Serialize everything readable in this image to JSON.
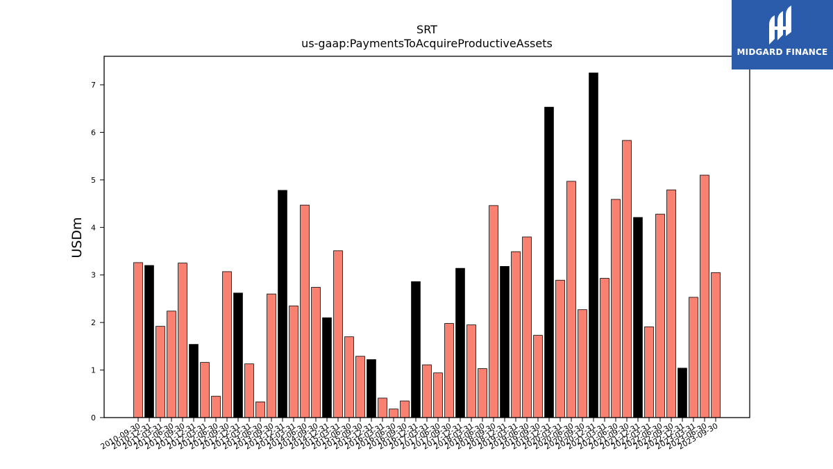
{
  "chart_data": {
    "type": "bar",
    "title": "SRT",
    "subtitle": "us-gaap:PaymentsToAcquireProductiveAssets",
    "ylabel": "USDm",
    "xlabel": "",
    "ylim": [
      0,
      7.6
    ],
    "yticks": [
      "0",
      "1",
      "2",
      "3",
      "4",
      "5",
      "6",
      "7"
    ],
    "colors": {
      "default": "#fa8072",
      "highlight": "#000000",
      "edge": "#000000"
    },
    "categories": [
      "2010-09-30",
      "2010-12-31",
      "2011-03-31",
      "2011-06-30",
      "2011-09-30",
      "2011-12-31",
      "2012-03-31",
      "2012-06-30",
      "2012-09-30",
      "2012-12-31",
      "2013-03-31",
      "2013-06-30",
      "2013-09-30",
      "2013-12-31",
      "2014-03-31",
      "2014-06-30",
      "2014-09-30",
      "2014-12-31",
      "2015-03-31",
      "2015-06-30",
      "2015-09-30",
      "2015-12-31",
      "2016-03-31",
      "2016-06-30",
      "2016-09-30",
      "2016-12-31",
      "2017-03-31",
      "2017-06-30",
      "2017-09-30",
      "2017-12-31",
      "2018-03-31",
      "2018-06-30",
      "2018-09-30",
      "2018-12-31",
      "2019-03-31",
      "2019-06-30",
      "2019-09-30",
      "2019-12-31",
      "2020-03-31",
      "2020-06-30",
      "2020-09-30",
      "2020-12-31",
      "2021-03-31",
      "2021-06-30",
      "2021-09-30",
      "2021-12-31",
      "2022-03-31",
      "2022-06-30",
      "2022-09-30",
      "2022-12-31",
      "2023-03-31",
      "2023-06-30",
      "2023-09-30"
    ],
    "xtick_labels": [
      "2010-09-30",
      "2010-12-31",
      "2011-03-31",
      "2011-06-30",
      "2011-09-30",
      "2011-12-31",
      "2012-03-31",
      "2012-06-30",
      "2012-09-30",
      "2012-12-31",
      "2013-03-31",
      "2013-06-30",
      "2013-09-30",
      "2013-12-31",
      "2014-03-31",
      "2014-06-30",
      "2014-09-30",
      "2014-12-31",
      "2015-03-31",
      "2015-06-30",
      "2015-09-30",
      "2015-12-31",
      "2016-03-31",
      "2016-06-30",
      "2016-09-30",
      "2016-12-31",
      "2017-03-31",
      "2017-06-30",
      "2017-09-30",
      "2017-12-31",
      "2018-03-31",
      "2018-06-30",
      "2018-09-30",
      "2018-12-31",
      "2019-03-31",
      "2019-06-30",
      "2019-09-30",
      "2019-12-31",
      "2020-03-31",
      "2020-06-30",
      "2020-09-30",
      "2020-12-31",
      "2021-03-31",
      "2021-06-30",
      "2021-09-30",
      "2021-12-31",
      "2022-03-31",
      "2022-06-30",
      "2022-09-30",
      "2022-12-31",
      "2023-03-31",
      "2023-06-30",
      "2023-09-30"
    ],
    "values": [
      3.26,
      3.2,
      1.92,
      2.24,
      3.25,
      1.54,
      1.16,
      0.45,
      3.07,
      2.62,
      1.13,
      0.33,
      2.6,
      4.78,
      2.35,
      4.47,
      2.74,
      2.1,
      3.51,
      1.7,
      1.29,
      1.22,
      0.41,
      0.18,
      0.35,
      2.86,
      1.11,
      0.94,
      1.98,
      3.14,
      1.95,
      1.03,
      4.46,
      3.18,
      3.49,
      3.8,
      1.73,
      6.53,
      2.89,
      4.97,
      2.27,
      7.25,
      2.93,
      4.59,
      5.83,
      4.21,
      1.91,
      4.28,
      4.79,
      1.04,
      2.53,
      5.1,
      3.05
    ],
    "highlight": [
      false,
      true,
      false,
      false,
      false,
      true,
      false,
      false,
      false,
      true,
      false,
      false,
      false,
      true,
      false,
      false,
      false,
      true,
      false,
      false,
      false,
      true,
      false,
      false,
      false,
      true,
      false,
      false,
      false,
      true,
      false,
      false,
      false,
      true,
      false,
      false,
      false,
      true,
      false,
      false,
      false,
      true,
      false,
      false,
      false,
      true,
      false,
      false,
      false,
      true,
      false,
      false,
      false
    ],
    "grid": false,
    "legend": "none"
  },
  "logo": {
    "text": "MIDGARD FINANCE",
    "icon": "midgard-logo-icon",
    "background": "#2b5bab"
  }
}
